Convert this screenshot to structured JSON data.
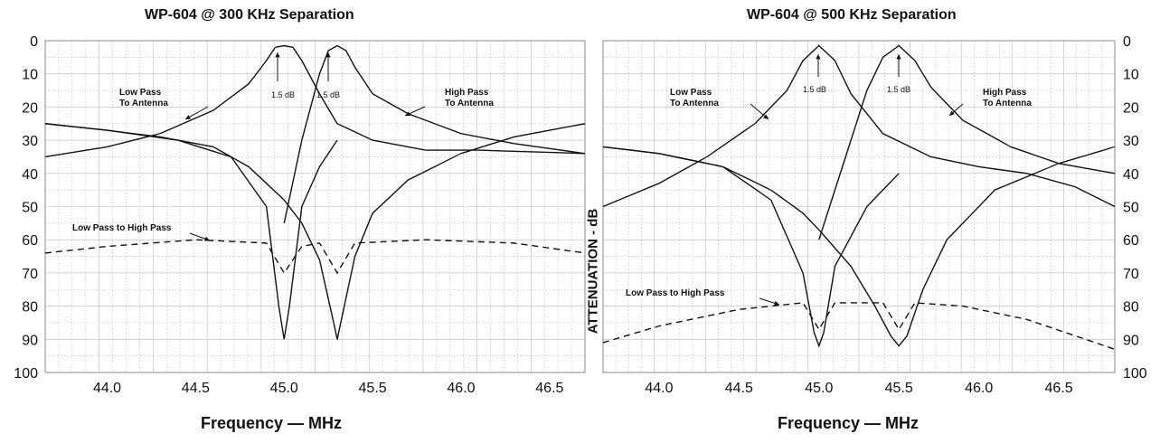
{
  "charts": [
    {
      "title": "WP-604 @ 300 KHz Separation",
      "xlabel": "Frequency — MHz",
      "ylabel": "",
      "y_ticks": [
        "0",
        "10",
        "20",
        "30",
        "40",
        "50",
        "60",
        "70",
        "80",
        "90",
        "100"
      ],
      "x_ticks": [
        "44.0",
        "44.5",
        "45.0",
        "45.5",
        "46.0",
        "46.5"
      ],
      "annotations": {
        "low_pass": [
          "Low Pass",
          "To Antenna"
        ],
        "high_pass": [
          "High Pass",
          "To Antenna"
        ],
        "cross": "Low Pass to High Pass",
        "db_left": "1.5 dB",
        "db_right": "1.5 dB"
      }
    },
    {
      "title": "WP-604 @ 500 KHz Separation",
      "xlabel": "Frequency — MHz",
      "ylabel": "ATTENUATION - dB",
      "y_ticks": [
        "0",
        "10",
        "20",
        "30",
        "40",
        "50",
        "60",
        "70",
        "80",
        "90",
        "100"
      ],
      "x_ticks": [
        "44.0",
        "44.5",
        "45.0",
        "45.5",
        "46.0",
        "46.5"
      ],
      "annotations": {
        "low_pass": [
          "Low Pass",
          "To Antenna"
        ],
        "high_pass": [
          "High Pass",
          "To Antenna"
        ],
        "cross": "Low Pass to High Pass",
        "db_left": "1.5 dB",
        "db_right": "1.5 dB"
      }
    }
  ],
  "chart_data": [
    {
      "type": "line",
      "title": "WP-604 @ 300 KHz Separation",
      "xlabel": "Frequency — MHz",
      "ylabel": "",
      "xlim": [
        43.65,
        46.7
      ],
      "ylim": [
        0,
        100
      ],
      "y_inverted": true,
      "x_ticks": [
        44.0,
        44.5,
        45.0,
        45.5,
        46.0,
        46.5
      ],
      "y_ticks": [
        0,
        10,
        20,
        30,
        40,
        50,
        60,
        70,
        80,
        90,
        100
      ],
      "grid": true,
      "series": [
        {
          "name": "Low Pass To Antenna",
          "style": "solid",
          "x": [
            43.65,
            44.0,
            44.3,
            44.6,
            44.8,
            44.9,
            44.95,
            45.0,
            45.05,
            45.1,
            45.2,
            45.3,
            45.5,
            45.8,
            46.1,
            46.4,
            46.7
          ],
          "y": [
            35,
            32,
            28,
            21,
            13,
            6,
            2,
            1.5,
            2,
            6,
            16,
            25,
            30,
            33,
            33,
            33.5,
            34
          ]
        },
        {
          "name": "Low Pass To Antenna (resonance)",
          "style": "solid",
          "x": [
            43.65,
            44.0,
            44.3,
            44.6,
            44.8,
            45.0,
            45.1,
            45.2,
            45.28,
            45.3,
            45.32,
            45.4,
            45.5,
            45.7,
            46.0,
            46.3,
            46.7
          ],
          "y": [
            25,
            27,
            29,
            32,
            38,
            48,
            55,
            66,
            85,
            90,
            85,
            65,
            52,
            42,
            34,
            29,
            25
          ]
        },
        {
          "name": "High Pass To Antenna (resonance)",
          "style": "solid",
          "x": [
            43.65,
            44.0,
            44.4,
            44.7,
            44.9,
            44.97,
            45.0,
            45.03,
            45.1,
            45.2,
            45.3
          ],
          "y": [
            25,
            27,
            30,
            35,
            50,
            80,
            90,
            80,
            50,
            38,
            30
          ]
        },
        {
          "name": "High Pass To Antenna",
          "style": "solid",
          "x": [
            45.0,
            45.1,
            45.2,
            45.25,
            45.3,
            45.35,
            45.4,
            45.5,
            45.7,
            46.0,
            46.3,
            46.7
          ],
          "y": [
            55,
            30,
            10,
            3,
            1.5,
            3,
            8,
            16,
            22,
            28,
            31,
            34
          ]
        },
        {
          "name": "Low Pass to High Pass",
          "style": "dashed",
          "x": [
            43.65,
            44.0,
            44.5,
            44.9,
            45.0,
            45.1,
            45.2,
            45.3,
            45.4,
            45.8,
            46.3,
            46.7
          ],
          "y": [
            64,
            62,
            60,
            61,
            70,
            62,
            61,
            70,
            61,
            60,
            61,
            64
          ]
        }
      ]
    },
    {
      "type": "line",
      "title": "WP-604 @ 500 KHz Separation",
      "xlabel": "Frequency — MHz",
      "ylabel": "ATTENUATION - dB",
      "xlim": [
        43.65,
        46.85
      ],
      "ylim": [
        0,
        100
      ],
      "y_inverted": true,
      "x_ticks": [
        44.0,
        44.5,
        45.0,
        45.5,
        46.0,
        46.5
      ],
      "y_ticks": [
        0,
        10,
        20,
        30,
        40,
        50,
        60,
        70,
        80,
        90,
        100
      ],
      "grid": true,
      "series": [
        {
          "name": "Low Pass To Antenna",
          "style": "solid",
          "x": [
            43.65,
            44.0,
            44.3,
            44.6,
            44.8,
            44.9,
            45.0,
            45.1,
            45.2,
            45.4,
            45.7,
            46.0,
            46.3,
            46.6,
            46.85
          ],
          "y": [
            50,
            43,
            35,
            25,
            15,
            6,
            1.5,
            6,
            16,
            28,
            35,
            38,
            40,
            44,
            50
          ]
        },
        {
          "name": "Low Pass To Antenna (resonance)",
          "style": "solid",
          "x": [
            43.65,
            44.0,
            44.4,
            44.7,
            44.9,
            45.0,
            45.2,
            45.35,
            45.45,
            45.5,
            45.55,
            45.65,
            45.8,
            46.1,
            46.5,
            46.85
          ],
          "y": [
            32,
            34,
            38,
            45,
            52,
            57,
            68,
            80,
            89,
            92,
            89,
            75,
            60,
            45,
            37,
            32
          ]
        },
        {
          "name": "High Pass To Antenna (resonance)",
          "style": "solid",
          "x": [
            43.65,
            44.0,
            44.4,
            44.7,
            44.9,
            44.97,
            45.0,
            45.03,
            45.1,
            45.3,
            45.5
          ],
          "y": [
            32,
            34,
            38,
            48,
            70,
            88,
            92,
            88,
            68,
            50,
            40
          ]
        },
        {
          "name": "High Pass To Antenna",
          "style": "solid",
          "x": [
            45.0,
            45.2,
            45.3,
            45.4,
            45.5,
            45.6,
            45.7,
            45.9,
            46.2,
            46.5,
            46.85
          ],
          "y": [
            60,
            30,
            15,
            5,
            1.5,
            6,
            14,
            24,
            32,
            37,
            40
          ]
        },
        {
          "name": "Low Pass to High Pass",
          "style": "dashed",
          "x": [
            43.65,
            44.0,
            44.5,
            44.9,
            45.0,
            45.1,
            45.3,
            45.4,
            45.5,
            45.6,
            45.9,
            46.3,
            46.85
          ],
          "y": [
            91,
            86,
            81,
            79,
            87,
            79,
            79,
            79,
            87,
            79,
            80,
            84,
            93
          ]
        }
      ]
    }
  ]
}
